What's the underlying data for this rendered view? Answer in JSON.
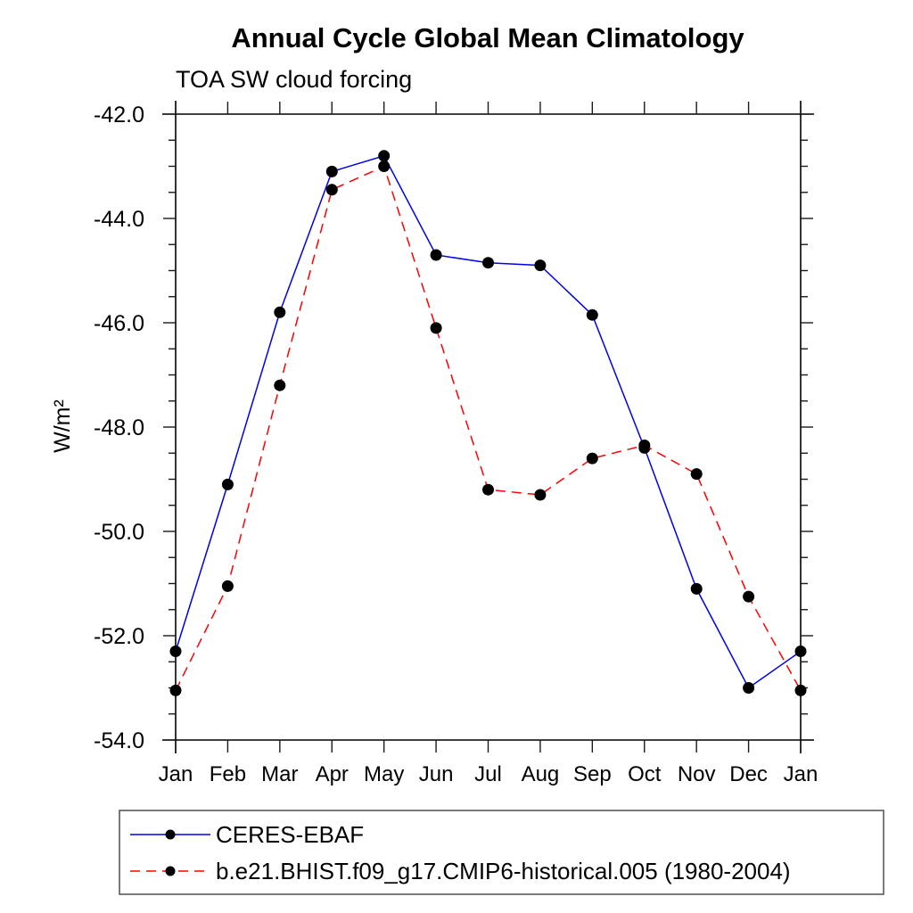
{
  "chart_data": {
    "type": "line",
    "title": "Annual Cycle Global Mean Climatology",
    "subtitle": "TOA SW cloud forcing",
    "ylabel": "W/m²",
    "xlabel": "",
    "categories": [
      "Jan",
      "Feb",
      "Mar",
      "Apr",
      "May",
      "Jun",
      "Jul",
      "Aug",
      "Sep",
      "Oct",
      "Nov",
      "Dec",
      "Jan"
    ],
    "ylim": [
      -54.0,
      -42.0
    ],
    "yticks": [
      {
        "value": -42.0,
        "label": "-42.0"
      },
      {
        "value": -44.0,
        "label": "-44.0"
      },
      {
        "value": -46.0,
        "label": "-46.0"
      },
      {
        "value": -48.0,
        "label": "-48.0"
      },
      {
        "value": -50.0,
        "label": "-50.0"
      },
      {
        "value": -52.0,
        "label": "-52.0"
      },
      {
        "value": -54.0,
        "label": "-54.0"
      }
    ],
    "y_minor_step": 0.5,
    "grid": false,
    "legend_position": "bottom-left-box",
    "marker_color": "#000000",
    "series": [
      {
        "name": "CERES-EBAF",
        "color": "#0000ee",
        "line_style": "solid",
        "marker": "filled-black-circle",
        "values": [
          -52.3,
          -49.1,
          -45.8,
          -43.1,
          -42.8,
          -44.7,
          -44.85,
          -44.9,
          -45.85,
          -48.4,
          -51.1,
          -53.0,
          -52.3
        ]
      },
      {
        "name": "b.e21.BHIST.f09_g17.CMIP6-historical.005 (1980-2004)",
        "color": "#ff0000",
        "line_style": "dashed",
        "marker": "filled-black-circle",
        "values": [
          -53.05,
          -51.05,
          -47.2,
          -43.45,
          -43.0,
          -46.1,
          -49.2,
          -49.3,
          -48.6,
          -48.35,
          -48.9,
          -51.25,
          -53.05
        ]
      }
    ]
  }
}
